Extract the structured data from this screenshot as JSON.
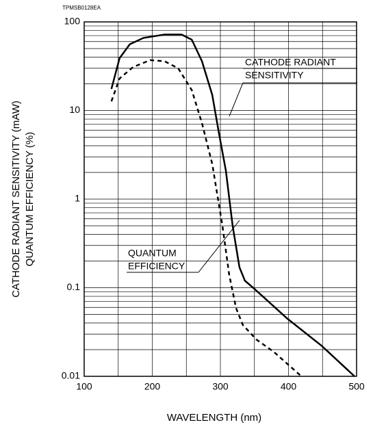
{
  "chart_data": {
    "type": "line",
    "code": "TPMSB0128EA",
    "xlabel": "WAVELENGTH (nm)",
    "ylabel": [
      "CATHODE RADIANT SENSITIVITY  (mAW)",
      "QUANTUM EFFICIENCY (%)"
    ],
    "xlim": [
      100,
      500
    ],
    "xticks": [
      100,
      200,
      300,
      400,
      500
    ],
    "ylim": [
      0.01,
      100
    ],
    "yticks": [
      100,
      10,
      1,
      0.1,
      0.01
    ],
    "ylog": true,
    "grid": true,
    "series": [
      {
        "name": [
          "CATHODE RADIANT",
          "SENSITIVITY"
        ],
        "color": "#000000",
        "line_style": "solid",
        "x": [
          140,
          152,
          167,
          187,
          218,
          243,
          258,
          273,
          288,
          298,
          308,
          318,
          328,
          336,
          348,
          398,
          449,
          497
        ],
        "values": [
          17.5,
          39,
          56,
          66,
          72,
          72,
          63,
          36,
          15,
          5.5,
          2.1,
          0.5,
          0.17,
          0.12,
          0.1,
          0.045,
          0.022,
          0.01
        ]
      },
      {
        "name": [
          "QUANTUM",
          "EFFICIENCY"
        ],
        "color": "#000000",
        "line_style": "dashed",
        "x": [
          140,
          152,
          172,
          197,
          218,
          238,
          258,
          273,
          288,
          303,
          313,
          323,
          333,
          353,
          378,
          419
        ],
        "values": [
          12.7,
          23,
          31,
          37,
          36,
          30,
          17,
          7.2,
          2.5,
          0.5,
          0.14,
          0.059,
          0.038,
          0.026,
          0.019,
          0.01
        ]
      }
    ]
  }
}
